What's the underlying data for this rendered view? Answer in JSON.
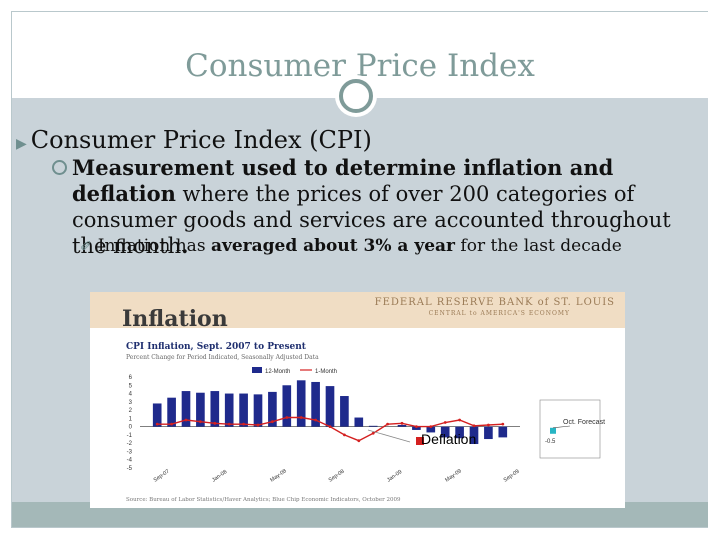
{
  "slide": {
    "title": "Consumer Price Index",
    "bullet1": "Consumer Price Index (CPI)",
    "bullet2_bold_1": "Measurement used to determine inflation and",
    "bullet2_bold_2": "deflation",
    "bullet2_rest": " where the prices of over 200 categories of consumer goods and services are accounted throughout the month",
    "bullet2_end": ".",
    "bullet3_pre": "Inflation has ",
    "bullet3_bold": "averaged about 3% a year",
    "bullet3_post": " for the last decade",
    "deflation_label": "Deflation"
  },
  "colors": {
    "title": "#7f9b99",
    "body_bg": "#c9d3d9",
    "footer": "#a4b8b8",
    "bar": "#1f2a8c",
    "line": "#d42020"
  },
  "chart_data": {
    "type": "bar",
    "banner_title": "FEDERAL RESERVE BANK of ST. LOUIS",
    "banner_subtitle": "CENTRAL to AMERICA'S ECONOMY",
    "header": "Inflation",
    "title": "CPI Inflation, Sept. 2007 to Present",
    "subtitle": "Percent Change for Period Indicated, Seasonally Adjusted Data",
    "legend": [
      "12-Month",
      "1-Month"
    ],
    "annotation": "Oct. Forecast",
    "forecast_value_label": "-0.5",
    "source": "Source: Bureau of Labor Statistics/Haver Analytics; Blue Chip Economic Indicators, October 2009",
    "ylim": [
      -5,
      6
    ],
    "yticks": [
      "6",
      "5",
      "4",
      "3",
      "2",
      "1",
      "0",
      "-1",
      "-2",
      "-3",
      "-4",
      "-5"
    ],
    "xticks": [
      "Sep-07",
      "Jan-08",
      "May-08",
      "Sep-08",
      "Jan-09",
      "May-09",
      "Sep-09"
    ],
    "series": [
      {
        "name": "12-Month",
        "values": [
          2.8,
          3.5,
          4.3,
          4.1,
          4.3,
          4.0,
          4.0,
          3.9,
          4.2,
          5.0,
          5.6,
          5.4,
          4.9,
          3.7,
          1.1,
          0.1,
          0.0,
          0.2,
          -0.4,
          -0.7,
          -1.3,
          -1.4,
          -2.1,
          -1.5,
          -1.3
        ]
      },
      {
        "name": "1-Month",
        "values": [
          0.3,
          0.3,
          0.8,
          0.6,
          0.4,
          0.3,
          0.3,
          0.2,
          0.6,
          1.1,
          1.1,
          0.8,
          0.0,
          -1.0,
          -1.7,
          -0.8,
          0.3,
          0.4,
          0.0,
          0.0,
          0.5,
          0.8,
          0.1,
          0.2,
          0.3
        ]
      }
    ]
  }
}
